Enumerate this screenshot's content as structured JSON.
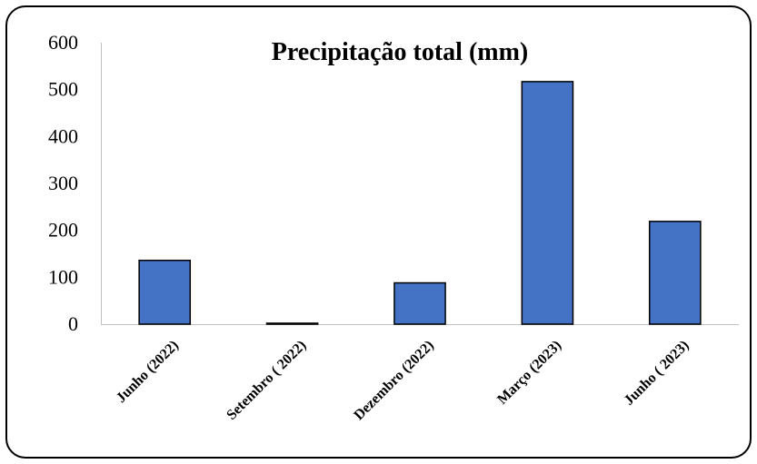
{
  "chart_data": {
    "type": "bar",
    "title": "Precipitação total (mm)",
    "xlabel": "",
    "ylabel": "",
    "categories": [
      "Junho (2022)",
      "Setembro ( 2022)",
      "Dezembro (2022)",
      "Março (2023)",
      "Junho ( 2023)"
    ],
    "values": [
      136,
      2,
      88,
      517,
      219
    ],
    "ylim": [
      0,
      600
    ],
    "yticks": [
      0,
      100,
      200,
      300,
      400,
      500,
      600
    ],
    "grid": false,
    "legend": "none",
    "colors": {
      "bar_fill": "#4472C4",
      "bar_stroke": "#000000",
      "axis": "#BFBFBF"
    }
  }
}
